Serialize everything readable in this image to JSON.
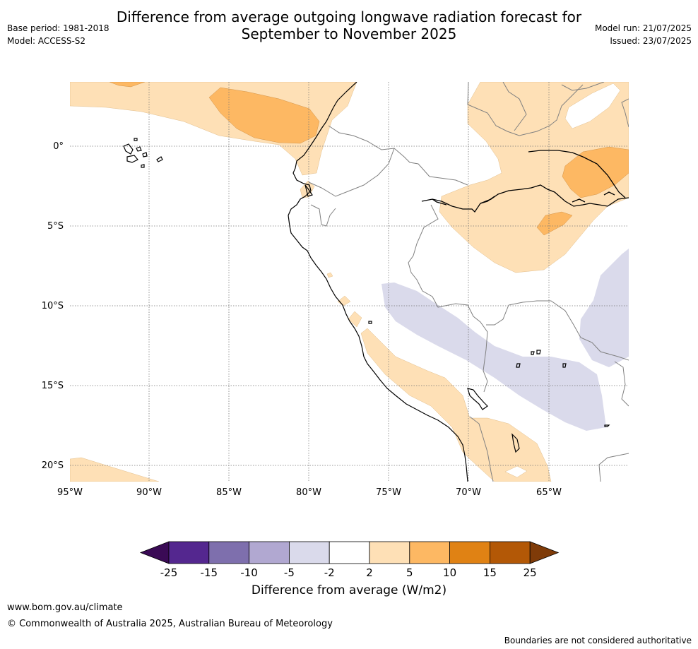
{
  "title_line1": "Difference from average outgoing longwave radiation forecast for",
  "title_line2": "September to November 2025",
  "base_period": "Base period: 1981-2018",
  "model": "Model: ACCESS-S2",
  "model_run": "Model run: 21/07/2025",
  "issued": "Issued: 23/07/2025",
  "footer": {
    "url": "www.bom.gov.au/climate",
    "copyright": "© Commonwealth of Australia 2025, Australian Bureau of Meteorology",
    "note": "Boundaries are not considered authoritative"
  },
  "colorbar": {
    "title": "Difference from average (W/m2)",
    "ticks": [
      "-25",
      "-15",
      "-10",
      "-5",
      "-2",
      "2",
      "5",
      "10",
      "15",
      "25"
    ],
    "colors": [
      "#3a0a55",
      "#54278f",
      "#7e6fad",
      "#b1a8d1",
      "#dadaeb",
      "#ffffff",
      "#fee0b6",
      "#fdb863",
      "#e08214",
      "#b35806",
      "#7f3b08"
    ]
  },
  "map": {
    "lat_labels": [
      "0°",
      "5°S",
      "10°S",
      "15°S",
      "20°S"
    ],
    "lon_labels": [
      "95°W",
      "90°W",
      "85°W",
      "80°W",
      "75°W",
      "70°W",
      "65°W"
    ]
  }
}
